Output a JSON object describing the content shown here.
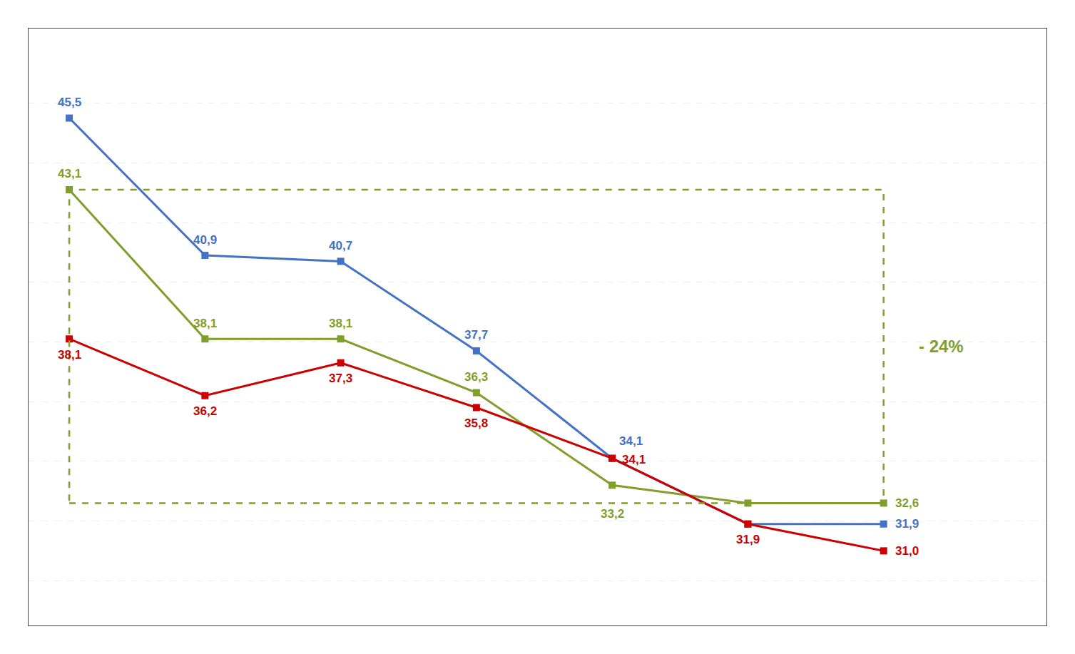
{
  "chart_data": {
    "type": "line",
    "x": [
      0,
      1,
      2,
      3,
      4,
      5,
      6
    ],
    "xlim": [
      -0.3,
      7.2
    ],
    "xticks": [],
    "ylim": [
      28.5,
      48.5
    ],
    "yticks": [
      30,
      32,
      34,
      36,
      38,
      40,
      42,
      44,
      46
    ],
    "grid": true,
    "tick_labels": false,
    "data_labels": true,
    "marker": "square",
    "line_style": "solid",
    "series": [
      {
        "color": "#4472c4",
        "values": [
          45.5,
          40.9,
          40.7,
          37.7,
          34.1,
          31.9,
          31.9
        ],
        "value_labels": [
          "45,5",
          "40,9",
          "40,7",
          "37,7",
          "34,1",
          null,
          "31,9"
        ]
      },
      {
        "color": "#7f9f2a",
        "values": [
          43.1,
          38.1,
          38.1,
          36.3,
          33.2,
          32.6,
          32.6
        ],
        "value_labels": [
          "43,1",
          "38,1",
          "38,1",
          "36,3",
          "33,2",
          null,
          "32,6"
        ]
      },
      {
        "color": "#cc0000",
        "values": [
          38.1,
          36.2,
          37.3,
          35.8,
          34.1,
          31.9,
          31.0
        ],
        "value_labels": [
          "38,1",
          "36,2",
          "37,3",
          "35,8",
          "34,1",
          "31,9",
          "31,0"
        ]
      }
    ],
    "annotations": [
      {
        "text": "- 24%",
        "color": "#7f9f2a",
        "x": 6.25,
        "y": 37.85
      }
    ],
    "shapes": [
      {
        "type": "rect",
        "x0": 0,
        "x1": 6,
        "y0": 32.6,
        "y1": 43.1,
        "color": "#7f9f2a",
        "line_style": "dashed"
      }
    ]
  }
}
